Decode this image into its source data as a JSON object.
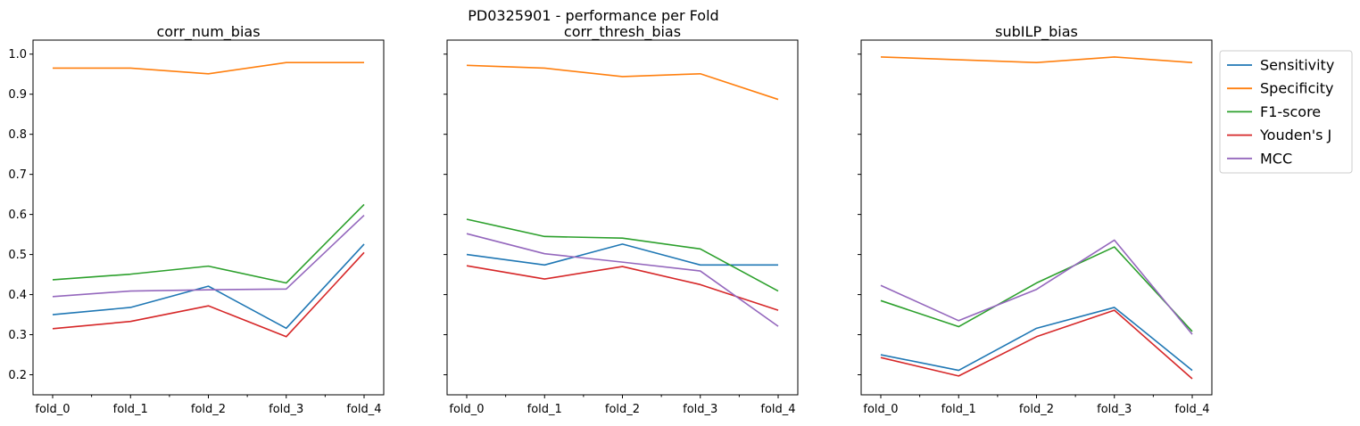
{
  "suptitle": "PD0325901 - performance per Fold",
  "chart_data": [
    {
      "type": "line",
      "title": "corr_num_bias",
      "categories": [
        "fold_0",
        "fold_1",
        "fold_2",
        "fold_3",
        "fold_4"
      ],
      "ylim": [
        0.15,
        1.035
      ],
      "yticks": [
        "0.2",
        "0.3",
        "0.4",
        "0.5",
        "0.6",
        "0.7",
        "0.8",
        "0.9",
        "1.0"
      ],
      "grid": false,
      "series": [
        {
          "name": "Sensitivity",
          "color": "#1f77b4",
          "values": [
            0.35,
            0.368,
            0.421,
            0.316,
            0.526
          ]
        },
        {
          "name": "Specificity",
          "color": "#ff7f0e",
          "values": [
            0.965,
            0.965,
            0.951,
            0.979,
            0.979
          ]
        },
        {
          "name": "F1-score",
          "color": "#2ca02c",
          "values": [
            0.437,
            0.451,
            0.471,
            0.429,
            0.625
          ]
        },
        {
          "name": "Youden's J",
          "color": "#d62728",
          "values": [
            0.315,
            0.333,
            0.372,
            0.295,
            0.505
          ]
        },
        {
          "name": "MCC",
          "color": "#9467bd",
          "values": [
            0.395,
            0.409,
            0.412,
            0.414,
            0.598
          ]
        }
      ]
    },
    {
      "type": "line",
      "title": "corr_thresh_bias",
      "categories": [
        "fold_0",
        "fold_1",
        "fold_2",
        "fold_3",
        "fold_4"
      ],
      "ylim": [
        0.15,
        1.035
      ],
      "grid": false,
      "series": [
        {
          "name": "Sensitivity",
          "color": "#1f77b4",
          "values": [
            0.5,
            0.474,
            0.526,
            0.474,
            0.474
          ]
        },
        {
          "name": "Specificity",
          "color": "#ff7f0e",
          "values": [
            0.972,
            0.965,
            0.944,
            0.951,
            0.887
          ]
        },
        {
          "name": "F1-score",
          "color": "#2ca02c",
          "values": [
            0.588,
            0.545,
            0.541,
            0.514,
            0.409
          ]
        },
        {
          "name": "Youden's J",
          "color": "#d62728",
          "values": [
            0.472,
            0.439,
            0.47,
            0.425,
            0.361
          ]
        },
        {
          "name": "MCC",
          "color": "#9467bd",
          "values": [
            0.552,
            0.502,
            0.481,
            0.459,
            0.321
          ]
        }
      ]
    },
    {
      "type": "line",
      "title": "subILP_bias",
      "categories": [
        "fold_0",
        "fold_1",
        "fold_2",
        "fold_3",
        "fold_4"
      ],
      "ylim": [
        0.15,
        1.035
      ],
      "grid": false,
      "series": [
        {
          "name": "Sensitivity",
          "color": "#1f77b4",
          "values": [
            0.25,
            0.211,
            0.316,
            0.368,
            0.211
          ]
        },
        {
          "name": "Specificity",
          "color": "#ff7f0e",
          "values": [
            0.993,
            0.986,
            0.979,
            0.993,
            0.979
          ]
        },
        {
          "name": "F1-score",
          "color": "#2ca02c",
          "values": [
            0.385,
            0.32,
            0.429,
            0.519,
            0.308
          ]
        },
        {
          "name": "Youden's J",
          "color": "#d62728",
          "values": [
            0.243,
            0.197,
            0.295,
            0.361,
            0.19
          ]
        },
        {
          "name": "MCC",
          "color": "#9467bd",
          "values": [
            0.423,
            0.335,
            0.413,
            0.536,
            0.301
          ]
        }
      ]
    }
  ],
  "legend": {
    "placement": "outside-right-top",
    "entries": [
      {
        "label": "Sensitivity",
        "color": "#1f77b4"
      },
      {
        "label": "Specificity",
        "color": "#ff7f0e"
      },
      {
        "label": "F1-score",
        "color": "#2ca02c"
      },
      {
        "label": "Youden's J",
        "color": "#d62728"
      },
      {
        "label": "MCC",
        "color": "#9467bd"
      }
    ]
  }
}
